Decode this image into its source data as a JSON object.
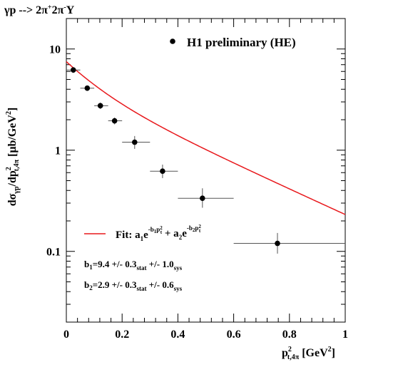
{
  "chart_data": {
    "type": "scatter",
    "title": "γp --> 2π⁺2π⁻Y",
    "xlabel": "p²t,4π [GeV²]",
    "ylabel": "dσγp/dp²t,4π [μb/GeV²]",
    "xlim": [
      0,
      1
    ],
    "ylim": [
      0.02,
      20
    ],
    "yscale": "log",
    "x_ticks": [
      "0",
      "0.2",
      "0.4",
      "0.6",
      "0.8",
      "1"
    ],
    "y_ticks": [
      "0.1",
      "1",
      "10"
    ],
    "grid": false,
    "legend_position": "top-right",
    "series": [
      {
        "name": "H1 preliminary  (HE)",
        "marker": "filled-circle",
        "color": "#000000",
        "points": [
          {
            "x": 0.025,
            "y": 6.2,
            "xerr": [
              0.0,
              0.05
            ],
            "yerr": [
              5.8,
              6.6
            ]
          },
          {
            "x": 0.075,
            "y": 4.1,
            "xerr": [
              0.05,
              0.1
            ],
            "yerr": [
              3.85,
              4.35
            ]
          },
          {
            "x": 0.122,
            "y": 2.75,
            "xerr": [
              0.1,
              0.15
            ],
            "yerr": [
              2.55,
              2.95
            ]
          },
          {
            "x": 0.173,
            "y": 1.95,
            "xerr": [
              0.15,
              0.2
            ],
            "yerr": [
              1.8,
              2.1
            ]
          },
          {
            "x": 0.245,
            "y": 1.2,
            "xerr": [
              0.2,
              0.3
            ],
            "yerr": [
              1.03,
              1.38
            ]
          },
          {
            "x": 0.345,
            "y": 0.62,
            "xerr": [
              0.3,
              0.4
            ],
            "yerr": [
              0.53,
              0.72
            ]
          },
          {
            "x": 0.488,
            "y": 0.335,
            "xerr": [
              0.4,
              0.6
            ],
            "yerr": [
              0.27,
              0.42
            ]
          },
          {
            "x": 0.757,
            "y": 0.12,
            "xerr": [
              0.6,
              1.0
            ],
            "yerr": [
              0.095,
              0.152
            ]
          }
        ]
      },
      {
        "name": "Fit",
        "type": "line",
        "color": "#e8181c",
        "function": "a1*exp(-b1*x) + a2*exp(-b2*x)",
        "params": {
          "a1": 3.3,
          "b1": 9.4,
          "a2": 4.2,
          "b2": 2.9
        }
      }
    ],
    "annotations": {
      "fit_label": "Fit:",
      "fit_formula": "a₁e^(-b₁p²t) + a₂e^(-b₂p²t)",
      "b1_text": "b₁=9.4 +/- 0.3stat +/- 1.0sys",
      "b2_text": "b₂=2.9 +/- 0.3stat +/- 0.6sys"
    }
  }
}
